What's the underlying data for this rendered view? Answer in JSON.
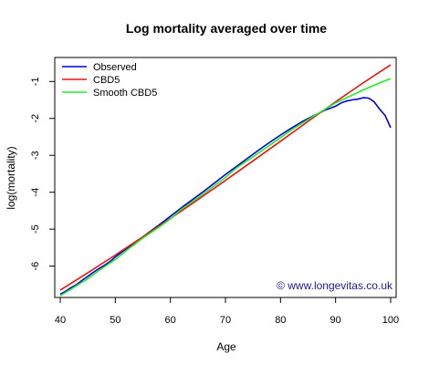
{
  "chart_data": {
    "type": "line",
    "title": "Log mortality averaged over time",
    "xlabel": "Age",
    "ylabel": "log(mortality)",
    "xlim": [
      39,
      101
    ],
    "ylim": [
      -6.85,
      -0.35
    ],
    "x_ticks": [
      40,
      50,
      60,
      70,
      80,
      90,
      100
    ],
    "y_ticks": [
      -6,
      -5,
      -4,
      -3,
      -2,
      -1
    ],
    "legend_position": "top-left",
    "credit": "© www.longevitas.co.uk",
    "series": [
      {
        "name": "Observed",
        "color": "#0000dd",
        "points": [
          [
            40,
            -6.76
          ],
          [
            41,
            -6.68
          ],
          [
            42,
            -6.58
          ],
          [
            43,
            -6.5
          ],
          [
            44,
            -6.38
          ],
          [
            45,
            -6.28
          ],
          [
            46,
            -6.17
          ],
          [
            47,
            -6.07
          ],
          [
            48,
            -5.98
          ],
          [
            49,
            -5.88
          ],
          [
            50,
            -5.75
          ],
          [
            52,
            -5.53
          ],
          [
            54,
            -5.32
          ],
          [
            56,
            -5.1
          ],
          [
            58,
            -4.88
          ],
          [
            60,
            -4.65
          ],
          [
            62,
            -4.42
          ],
          [
            64,
            -4.2
          ],
          [
            66,
            -3.98
          ],
          [
            68,
            -3.75
          ],
          [
            70,
            -3.52
          ],
          [
            72,
            -3.3
          ],
          [
            74,
            -3.08
          ],
          [
            76,
            -2.86
          ],
          [
            78,
            -2.65
          ],
          [
            80,
            -2.45
          ],
          [
            82,
            -2.26
          ],
          [
            84,
            -2.08
          ],
          [
            86,
            -1.93
          ],
          [
            87,
            -1.86
          ],
          [
            88,
            -1.78
          ],
          [
            89,
            -1.73
          ],
          [
            90,
            -1.67
          ],
          [
            91,
            -1.58
          ],
          [
            92,
            -1.53
          ],
          [
            93,
            -1.5
          ],
          [
            94,
            -1.48
          ],
          [
            95,
            -1.44
          ],
          [
            96,
            -1.45
          ],
          [
            97,
            -1.55
          ],
          [
            98,
            -1.75
          ],
          [
            99,
            -1.92
          ],
          [
            100,
            -2.25
          ]
        ]
      },
      {
        "name": "CBD5",
        "color": "#ee1111",
        "points": [
          [
            40,
            -6.65
          ],
          [
            45,
            -6.18
          ],
          [
            50,
            -5.7
          ],
          [
            55,
            -5.21
          ],
          [
            60,
            -4.71
          ],
          [
            65,
            -4.2
          ],
          [
            70,
            -3.68
          ],
          [
            75,
            -3.15
          ],
          [
            80,
            -2.62
          ],
          [
            85,
            -2.08
          ],
          [
            90,
            -1.55
          ],
          [
            95,
            -1.04
          ],
          [
            100,
            -0.55
          ]
        ]
      },
      {
        "name": "Smooth CBD5",
        "color": "#22ee22",
        "points": [
          [
            40,
            -6.8
          ],
          [
            42,
            -6.62
          ],
          [
            45,
            -6.34
          ],
          [
            48,
            -6.02
          ],
          [
            50,
            -5.82
          ],
          [
            52,
            -5.58
          ],
          [
            55,
            -5.24
          ],
          [
            58,
            -4.94
          ],
          [
            60,
            -4.72
          ],
          [
            62,
            -4.46
          ],
          [
            65,
            -4.15
          ],
          [
            68,
            -3.82
          ],
          [
            70,
            -3.6
          ],
          [
            72,
            -3.34
          ],
          [
            75,
            -3.04
          ],
          [
            78,
            -2.73
          ],
          [
            80,
            -2.52
          ],
          [
            82,
            -2.31
          ],
          [
            85,
            -2.03
          ],
          [
            88,
            -1.76
          ],
          [
            90,
            -1.58
          ],
          [
            92,
            -1.44
          ],
          [
            95,
            -1.23
          ],
          [
            98,
            -1.04
          ],
          [
            100,
            -0.92
          ]
        ]
      }
    ]
  }
}
